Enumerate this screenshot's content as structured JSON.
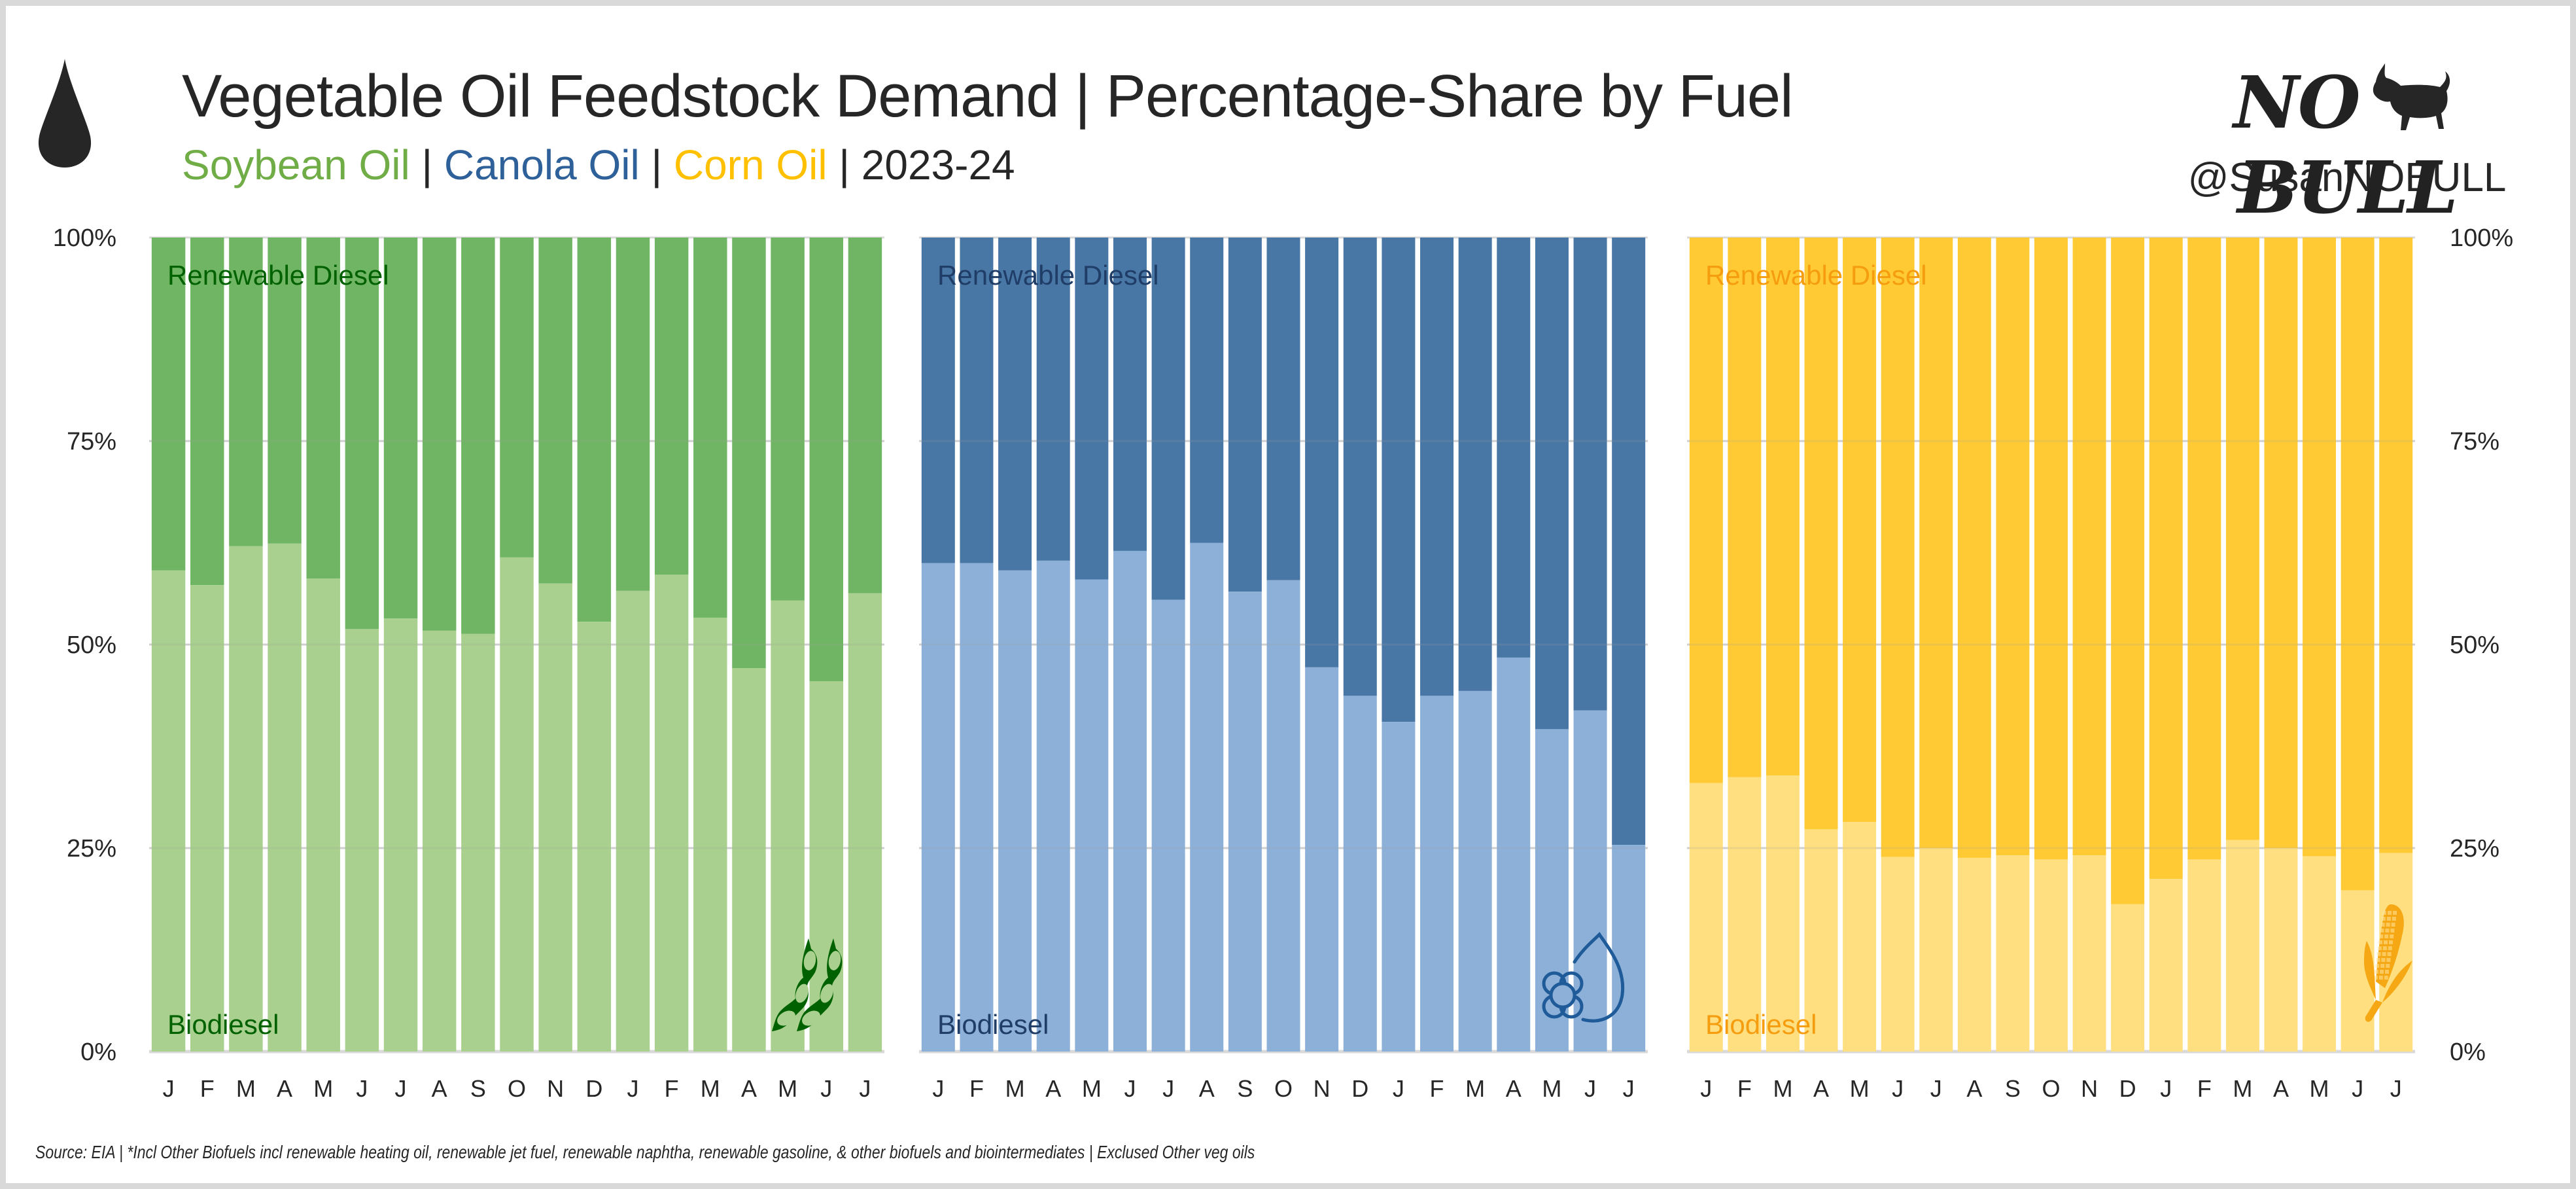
{
  "header": {
    "title": "Vegetable Oil Feedstock Demand | Percentage-Share by Fuel",
    "subtitle_parts": [
      {
        "text": "Soybean Oil",
        "color": "#70ad47"
      },
      {
        "text": " | ",
        "color": "#262626"
      },
      {
        "text": "Canola Oil",
        "color": "#2e6099"
      },
      {
        "text": " | ",
        "color": "#262626"
      },
      {
        "text": "Corn Oil",
        "color": "#ffc000"
      },
      {
        "text": " | ",
        "color": "#262626"
      },
      {
        "text": "2023-24",
        "color": "#262626"
      }
    ],
    "title_icon": "oil-drop-icon"
  },
  "brand": {
    "logo_text_left": "NO",
    "logo_text_right": "BULL",
    "logo_icon": "bull-icon",
    "handle": "@SusanNOBULL"
  },
  "footer": {
    "source": "Source: EIA | *Incl Other Biofuels incl renewable heating oil, renewable jet fuel, renewable naphtha, renewable gasoline, & other biofuels and biointermediates | Exclused Other veg oils"
  },
  "chart_data": [
    {
      "type": "bar",
      "stacked": true,
      "percent_stacked": true,
      "title": "Soybean Oil",
      "categories": [
        "J",
        "F",
        "M",
        "A",
        "M",
        "J",
        "J",
        "A",
        "S",
        "O",
        "N",
        "D",
        "J",
        "F",
        "M",
        "A",
        "M",
        "J",
        "J"
      ],
      "period": "Jan 2023 - Jul 2024",
      "series": [
        {
          "name": "Biodiesel",
          "color": "#a9d08e",
          "label_color": "#006100",
          "values": [
            59.1,
            57.3,
            62.1,
            62.4,
            58.1,
            51.9,
            53.2,
            51.7,
            51.3,
            60.7,
            57.5,
            52.8,
            56.6,
            58.6,
            53.3,
            47.1,
            55.4,
            45.5,
            56.3
          ]
        },
        {
          "name": "Renewable Diesel",
          "color": "#70b563",
          "label_color": "#006100",
          "values": [
            40.9,
            42.7,
            37.9,
            37.6,
            41.9,
            48.1,
            46.8,
            48.3,
            48.7,
            39.3,
            42.5,
            47.2,
            43.4,
            41.4,
            46.7,
            52.9,
            44.6,
            54.5,
            43.7
          ]
        }
      ],
      "ylim": [
        0,
        100
      ],
      "yticks": [
        "0%",
        "25%",
        "50%",
        "75%",
        "100%"
      ],
      "y_axis_side": "left",
      "icon": "soybean-icon",
      "icon_color": "#006100",
      "grid": true
    },
    {
      "type": "bar",
      "stacked": true,
      "percent_stacked": true,
      "title": "Canola Oil",
      "categories": [
        "J",
        "F",
        "M",
        "A",
        "M",
        "J",
        "J",
        "A",
        "S",
        "O",
        "N",
        "D",
        "J",
        "F",
        "M",
        "A",
        "M",
        "J",
        "J"
      ],
      "period": "Jan 2023 - Jul 2024",
      "series": [
        {
          "name": "Biodiesel",
          "color": "#8db0d8",
          "label_color": "#1f3d66",
          "values": [
            60.0,
            60.0,
            59.1,
            60.3,
            58.0,
            61.5,
            55.5,
            62.5,
            56.5,
            57.9,
            47.2,
            43.7,
            40.5,
            43.7,
            44.3,
            48.4,
            39.6,
            41.9,
            25.4
          ]
        },
        {
          "name": "Renewable Diesel",
          "color": "#4877a6",
          "label_color": "#1f3d66",
          "values": [
            40.0,
            40.0,
            40.9,
            39.7,
            42.0,
            38.5,
            44.5,
            37.5,
            43.5,
            42.1,
            52.8,
            56.3,
            59.5,
            56.3,
            55.7,
            51.6,
            60.4,
            58.1,
            74.6
          ]
        }
      ],
      "ylim": [
        0,
        100
      ],
      "icon": "canola-drop-icon",
      "icon_color": "#1f5a99",
      "grid": true
    },
    {
      "type": "bar",
      "stacked": true,
      "percent_stacked": true,
      "title": "Corn Oil",
      "categories": [
        "J",
        "F",
        "M",
        "A",
        "M",
        "J",
        "J",
        "A",
        "S",
        "O",
        "N",
        "D",
        "J",
        "F",
        "M",
        "A",
        "M",
        "J",
        "J"
      ],
      "period": "Jan 2023 - Jul 2024",
      "series": [
        {
          "name": "Biodiesel",
          "color": "#ffdf80",
          "label_color": "#f59c0f",
          "values": [
            33.0,
            33.7,
            33.9,
            27.3,
            28.2,
            23.9,
            25.0,
            23.8,
            24.1,
            23.6,
            24.1,
            18.1,
            21.2,
            23.6,
            26.0,
            25.0,
            24.0,
            19.8,
            24.4
          ]
        },
        {
          "name": "Renewable Diesel",
          "color": "#ffca33",
          "label_color": "#f59c0f",
          "values": [
            67.0,
            66.3,
            66.1,
            72.7,
            71.8,
            76.1,
            75.0,
            76.2,
            75.9,
            76.4,
            75.9,
            81.9,
            78.8,
            76.4,
            74.0,
            75.0,
            76.0,
            80.2,
            75.6
          ]
        }
      ],
      "ylim": [
        0,
        100
      ],
      "yticks": [
        "0%",
        "25%",
        "50%",
        "75%",
        "100%"
      ],
      "y_axis_side": "right",
      "icon": "corn-icon",
      "icon_color": "#f5a814",
      "grid": true
    }
  ]
}
